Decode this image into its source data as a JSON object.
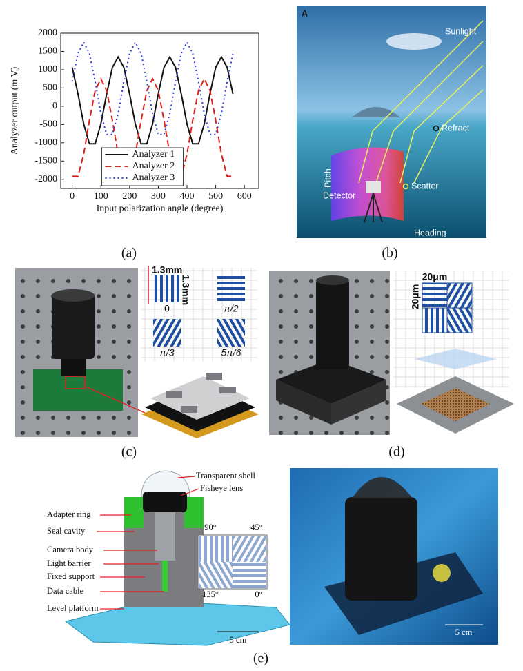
{
  "chart_data": {
    "type": "line",
    "xlabel": "Input polarization angle (degree)",
    "ylabel": "Analyzer output (m V)",
    "x": [
      0,
      20,
      40,
      60,
      80,
      100,
      120,
      140,
      160,
      180,
      200,
      220,
      240,
      260,
      280,
      300,
      320,
      340,
      360,
      380,
      400,
      420,
      440,
      460,
      480,
      500,
      520,
      540,
      560
    ],
    "series": [
      {
        "name": "Analyzer 1",
        "color": "#111111",
        "dash": "solid",
        "values": [
          1063,
          338,
          -488,
          -1027,
          -1027,
          -488,
          338,
          1063,
          1350,
          1063,
          338,
          -488,
          -1027,
          -1027,
          -488,
          338,
          1063,
          1350,
          1063,
          338,
          -488,
          -1027,
          -1027,
          -488,
          338,
          1063,
          1350,
          1063,
          338
        ]
      },
      {
        "name": "Analyzer 2",
        "color": "#e0201c",
        "dash": "dashed",
        "values": [
          -1918,
          -1918,
          -1313,
          -386,
          428,
          750,
          428,
          -386,
          -1313,
          -1918,
          -1918,
          -1313,
          -386,
          428,
          750,
          428,
          -386,
          -1313,
          -1918,
          -1918,
          -1313,
          -386,
          428,
          750,
          428,
          -386,
          -1313,
          -1918,
          -1918
        ]
      },
      {
        "name": "Analyzer 3",
        "color": "#2b3ed6",
        "dash": "dotted",
        "values": [
          676,
          1446,
          1750,
          1446,
          676,
          -200,
          -772,
          -772,
          -200,
          676,
          1446,
          1750,
          1446,
          676,
          -200,
          -772,
          -772,
          -200,
          676,
          1446,
          1750,
          1446,
          676,
          -200,
          -772,
          -772,
          -200,
          676,
          1446
        ]
      }
    ],
    "xlim": [
      -40,
      650
    ],
    "ylim": [
      -2250,
      2000
    ],
    "xticks": [
      0,
      100,
      200,
      300,
      400,
      500,
      600
    ],
    "yticks": [
      -2000,
      -1500,
      -1000,
      -500,
      0,
      500,
      1000,
      1500,
      2000
    ],
    "legend": "lower center"
  },
  "captions": [
    "(a)",
    "(b)",
    "(c)",
    "(d)",
    "(e)"
  ],
  "panel_b": {
    "letter": "A",
    "sunlight": "Sunlight",
    "refract": "Refract",
    "scatter": "Scatter",
    "pitch": "Pitch",
    "detector": "Detector",
    "heading": "Heading"
  },
  "panel_c": {
    "width": "1.3mm",
    "height": "1.3mm",
    "angles": [
      "0",
      "π/2",
      "π/3",
      "5π/6"
    ]
  },
  "panel_d": {
    "width": "20μm",
    "height": "20μm"
  },
  "panel_e": {
    "parts": [
      "Transparent shell",
      "Fisheye lens",
      "Adapter ring",
      "Seal cavity",
      "Camera body",
      "Light barrier",
      "Fixed support",
      "Data cable",
      "Level platform"
    ],
    "angles": [
      "90°",
      "45°",
      "135°",
      "0°"
    ],
    "scale_left": "5 cm",
    "scale_right": "5 cm"
  }
}
